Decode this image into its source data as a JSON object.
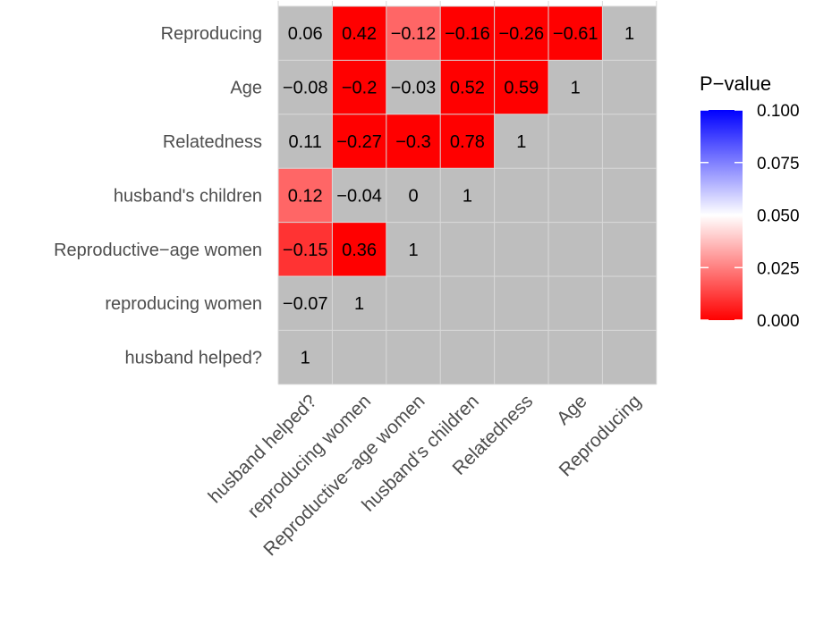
{
  "chart_data": {
    "type": "heatmap",
    "title": "",
    "variables": [
      "husband helped?",
      "reproducing women",
      "Reproductive−age women",
      "husband's children",
      "Relatedness",
      "Age",
      "Reproducing"
    ],
    "correlations": [
      [
        1,
        null,
        null,
        null,
        null,
        null,
        null
      ],
      [
        -0.07,
        1,
        null,
        null,
        null,
        null,
        null
      ],
      [
        -0.15,
        0.36,
        1,
        null,
        null,
        null,
        null
      ],
      [
        0.12,
        -0.04,
        0,
        1,
        null,
        null,
        null
      ],
      [
        0.11,
        -0.27,
        -0.3,
        0.78,
        1,
        null,
        null
      ],
      [
        -0.08,
        -0.2,
        -0.03,
        0.52,
        0.59,
        1,
        null
      ],
      [
        0.06,
        0.42,
        -0.12,
        -0.16,
        -0.26,
        -0.61,
        1
      ]
    ],
    "p_values": [
      [
        null,
        null,
        null,
        null,
        null,
        null,
        null
      ],
      [
        null,
        null,
        null,
        null,
        null,
        null,
        null
      ],
      [
        0.01,
        0.0,
        null,
        null,
        null,
        null,
        null
      ],
      [
        0.02,
        null,
        null,
        null,
        null,
        null,
        null
      ],
      [
        null,
        0.0,
        0.0,
        0.0,
        null,
        null,
        null
      ],
      [
        null,
        0.0,
        null,
        0.0,
        0.0,
        null,
        null
      ],
      [
        null,
        0.0,
        0.02,
        0.0,
        0.0,
        0.0,
        null
      ]
    ],
    "labels": [
      [
        "1",
        "",
        "",
        "",
        "",
        "",
        ""
      ],
      [
        "−0.07",
        "1",
        "",
        "",
        "",
        "",
        ""
      ],
      [
        "−0.15",
        "0.36",
        "1",
        "",
        "",
        "",
        ""
      ],
      [
        "0.12",
        "−0.04",
        "0",
        "1",
        "",
        "",
        ""
      ],
      [
        "0.11",
        "−0.27",
        "−0.3",
        "0.78",
        "1",
        "",
        ""
      ],
      [
        "−0.08",
        "−0.2",
        "−0.03",
        "0.52",
        "0.59",
        "1",
        ""
      ],
      [
        "0.06",
        "0.42",
        "−0.12",
        "−0.16",
        "−0.26",
        "−0.61",
        "1"
      ]
    ],
    "legend": {
      "title": "P−value",
      "ticks": [
        0.1,
        0.075,
        0.05,
        0.025,
        0.0
      ],
      "tick_labels": [
        "0.100",
        "0.075",
        "0.050",
        "0.025",
        "0.000"
      ],
      "range": [
        0,
        0.1
      ],
      "colors": {
        "low": "#ff0000",
        "mid": "#ffffff",
        "high": "#0000ff"
      },
      "placement": "right"
    },
    "na_color": "#bebebe",
    "grid": true
  }
}
